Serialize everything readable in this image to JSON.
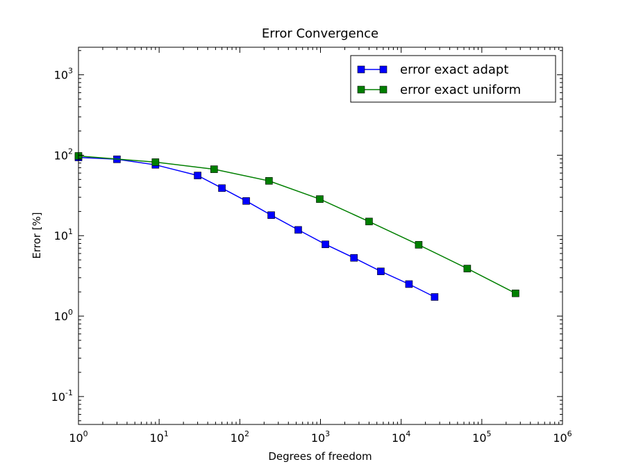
{
  "chart_data": {
    "type": "line",
    "title": "Error Convergence",
    "xlabel": "Degrees of freedom",
    "ylabel": "Error [%]",
    "x_scale": "log",
    "y_scale": "log",
    "xlim": [
      1,
      1000000
    ],
    "ylim": [
      0.045,
      2200
    ],
    "x_ticks": [
      {
        "base": "10",
        "exp": "0",
        "value": 1
      },
      {
        "base": "10",
        "exp": "1",
        "value": 10
      },
      {
        "base": "10",
        "exp": "2",
        "value": 100
      },
      {
        "base": "10",
        "exp": "3",
        "value": 1000
      },
      {
        "base": "10",
        "exp": "4",
        "value": 10000
      },
      {
        "base": "10",
        "exp": "5",
        "value": 100000
      },
      {
        "base": "10",
        "exp": "6",
        "value": 1000000
      }
    ],
    "y_ticks": [
      {
        "base": "10",
        "exp": "-1",
        "value": 0.1
      },
      {
        "base": "10",
        "exp": "0",
        "value": 1
      },
      {
        "base": "10",
        "exp": "1",
        "value": 10
      },
      {
        "base": "10",
        "exp": "2",
        "value": 100
      },
      {
        "base": "10",
        "exp": "3",
        "value": 1000
      }
    ],
    "grid": false,
    "legend_position": "top-right",
    "series": [
      {
        "name": "error exact adapt",
        "color": "#0000ff",
        "marker": "square",
        "points": [
          [
            1,
            94
          ],
          [
            3,
            89
          ],
          [
            9,
            76
          ],
          [
            30,
            56
          ],
          [
            60,
            39
          ],
          [
            120,
            27
          ],
          [
            245,
            18
          ],
          [
            530,
            11.8
          ],
          [
            1150,
            7.8
          ],
          [
            2600,
            5.3
          ],
          [
            5600,
            3.6
          ],
          [
            12500,
            2.5
          ],
          [
            26000,
            1.73
          ]
        ]
      },
      {
        "name": "error exact uniform",
        "color": "#007f00",
        "marker": "square",
        "points": [
          [
            1,
            98
          ],
          [
            9,
            82
          ],
          [
            48,
            67
          ],
          [
            230,
            48
          ],
          [
            980,
            28.5
          ],
          [
            4000,
            15
          ],
          [
            16500,
            7.7
          ],
          [
            66000,
            3.9
          ],
          [
            262000,
            1.92
          ]
        ]
      }
    ]
  }
}
